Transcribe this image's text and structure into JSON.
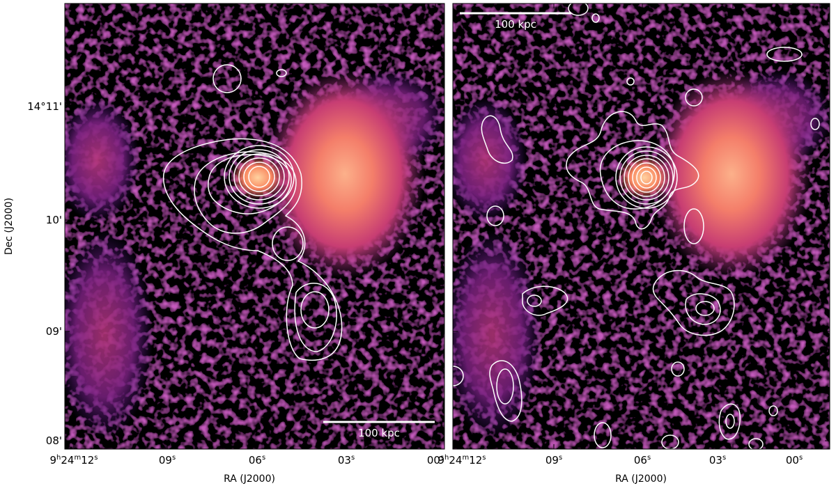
{
  "figure": {
    "y_axis_label": "Dec (J2000)",
    "x_axis_label": "RA (J2000)",
    "dec_ticks": [
      "14°11'",
      "10'",
      "09'",
      "08'"
    ],
    "ra_ticks": [
      {
        "h": "9",
        "m": "24",
        "s": "12"
      },
      {
        "s": "09"
      },
      {
        "s": "06"
      },
      {
        "s": "03"
      },
      {
        "s": "00"
      }
    ],
    "scale_bar_label": "100 kpc",
    "colors": {
      "contour": "#ffffff",
      "background": "#000004",
      "colormap": [
        "#000004",
        "#3b0f70",
        "#8c2981",
        "#de4968",
        "#fe9f6d",
        "#fcfdbf"
      ]
    }
  },
  "panels": [
    {
      "name": "left",
      "scale_bar_position": "bottom-right"
    },
    {
      "name": "right",
      "scale_bar_position": "top-left"
    }
  ]
}
